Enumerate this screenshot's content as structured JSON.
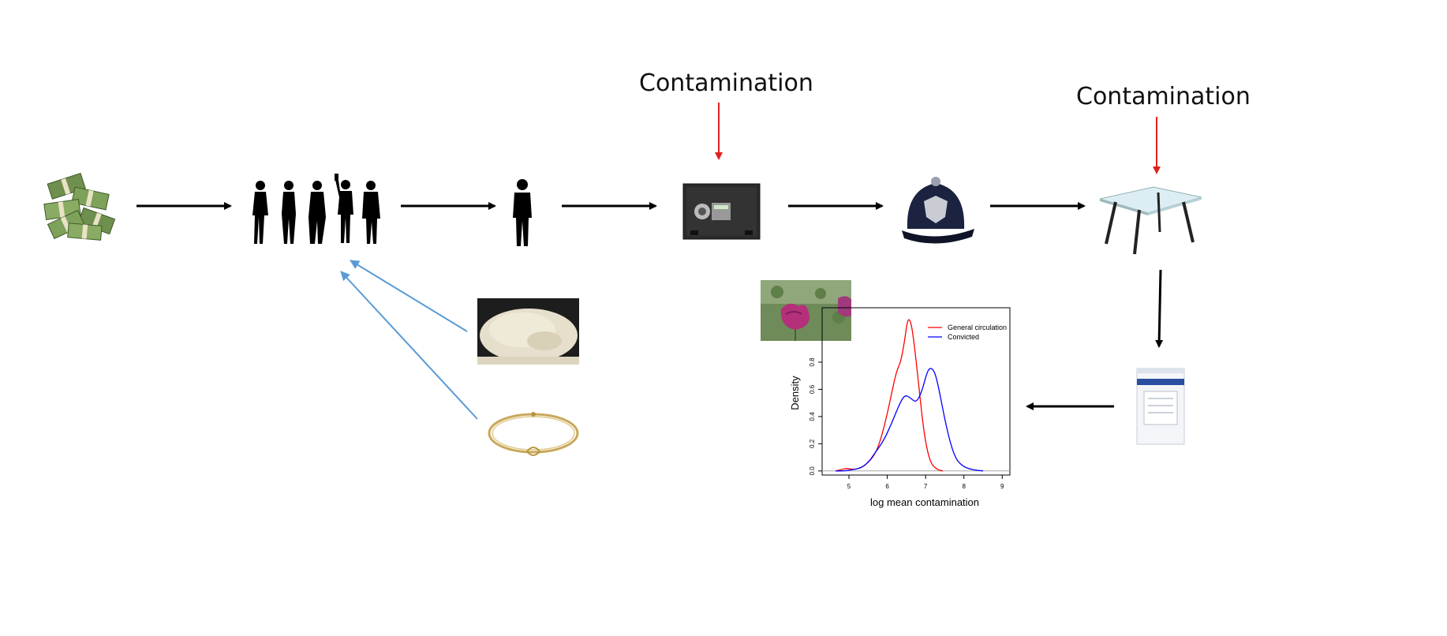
{
  "diagram": {
    "contamination_label_1": "Contamination",
    "contamination_label_2": "Contamination",
    "nodes": [
      {
        "id": "cash",
        "icon": "cash-stack-icon"
      },
      {
        "id": "people",
        "icon": "people-silhouettes-icon"
      },
      {
        "id": "person",
        "icon": "person-silhouette-icon"
      },
      {
        "id": "safe",
        "icon": "safe-icon"
      },
      {
        "id": "police",
        "icon": "police-helmet-icon"
      },
      {
        "id": "table",
        "icon": "glass-table-icon"
      },
      {
        "id": "evidence-bag",
        "icon": "evidence-bag-icon"
      },
      {
        "id": "powder",
        "icon": "powder-icon"
      },
      {
        "id": "bracelet",
        "icon": "bracelet-icon"
      },
      {
        "id": "poppy",
        "icon": "poppy-photo-icon"
      }
    ],
    "colors": {
      "flow_arrow": "#000000",
      "contamination_arrow": "#e02020",
      "input_arrow": "#5b9bd5"
    }
  },
  "chart_data": {
    "type": "line",
    "title": "",
    "xlabel": "log mean contamination",
    "ylabel": "Density",
    "xlim": [
      4.3,
      9.2
    ],
    "ylim": [
      -0.03,
      1.2
    ],
    "xticks": [
      5,
      6,
      7,
      8,
      9
    ],
    "yticks": [
      0.0,
      0.2,
      0.4,
      0.6,
      0.8
    ],
    "ytick_labels": [
      "0.0",
      "0.2",
      "0.4",
      "0.6",
      "0.8"
    ],
    "legend_position": "top-right",
    "series": [
      {
        "name": "General circulation",
        "color": "#ff0000",
        "x": [
          4.65,
          4.8,
          4.95,
          5.1,
          5.3,
          5.5,
          5.7,
          5.85,
          6.0,
          6.15,
          6.25,
          6.35,
          6.45,
          6.52,
          6.58,
          6.65,
          6.75,
          6.85,
          6.95,
          7.05,
          7.15,
          7.3,
          7.45
        ],
        "y": [
          0.0,
          0.01,
          0.02,
          0.01,
          0.02,
          0.06,
          0.13,
          0.25,
          0.42,
          0.62,
          0.74,
          0.8,
          0.95,
          1.1,
          1.12,
          1.05,
          0.82,
          0.55,
          0.3,
          0.14,
          0.05,
          0.01,
          0.0
        ]
      },
      {
        "name": "Convicted",
        "color": "#0000ff",
        "x": [
          4.65,
          4.9,
          5.1,
          5.3,
          5.5,
          5.7,
          5.9,
          6.1,
          6.3,
          6.45,
          6.6,
          6.75,
          6.9,
          7.05,
          7.15,
          7.25,
          7.35,
          7.5,
          7.65,
          7.8,
          8.0,
          8.2,
          8.5
        ],
        "y": [
          0.0,
          0.0,
          0.01,
          0.02,
          0.06,
          0.14,
          0.22,
          0.34,
          0.48,
          0.56,
          0.54,
          0.5,
          0.58,
          0.74,
          0.76,
          0.72,
          0.6,
          0.38,
          0.2,
          0.08,
          0.03,
          0.01,
          0.0
        ]
      }
    ]
  }
}
